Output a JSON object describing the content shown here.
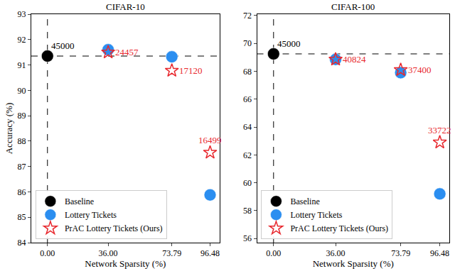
{
  "chart_data": [
    {
      "type": "scatter",
      "title": "CIFAR-10",
      "x_label": "Network Sparsity (%)",
      "y_label": "Accuracy (%)",
      "xlim": [
        -9.6,
        102.0
      ],
      "xticks": [
        {
          "value": 0,
          "label": "0.00"
        },
        {
          "value": 36,
          "label": "36.00"
        },
        {
          "value": 73.79,
          "label": "73.79"
        },
        {
          "value": 96.48,
          "label": "96.48"
        }
      ],
      "ylim": [
        84,
        93
      ],
      "yticks": [
        84,
        85,
        86,
        87,
        88,
        89,
        90,
        91,
        92,
        93
      ],
      "grid": false,
      "legend": "lower left",
      "series": [
        {
          "name": "Baseline",
          "color": "#000000",
          "marker": "circle",
          "line_style": "dashed",
          "x": [
            0
          ],
          "values": [
            91.35
          ],
          "labels": [
            "45000"
          ]
        },
        {
          "name": "Lottery Tickets",
          "color": "#2b8ef0",
          "marker": "circle",
          "x": [
            36,
            73.79,
            96.48
          ],
          "values": [
            91.6,
            91.32,
            85.88
          ]
        },
        {
          "name": "PrAC Lottery Tickets (Ours)",
          "color": "#e8282e",
          "marker": "star-open",
          "x": [
            36,
            73.79,
            96.48
          ],
          "values": [
            91.5,
            90.78,
            87.55
          ],
          "labels": [
            "24457",
            "17120",
            "16499"
          ]
        }
      ]
    },
    {
      "type": "scatter",
      "title": "CIFAR-100",
      "x_label": "Network Sparsity (%)",
      "xlim": [
        -9.6,
        102.0
      ],
      "xticks": [
        {
          "value": 0,
          "label": "0.00"
        },
        {
          "value": 36,
          "label": "36.00"
        },
        {
          "value": 73.79,
          "label": "73.79"
        },
        {
          "value": 96.48,
          "label": "96.48"
        }
      ],
      "ylim": [
        55.7,
        72.1
      ],
      "yticks": [
        56,
        58,
        60,
        62,
        64,
        66,
        68,
        70,
        72
      ],
      "grid": false,
      "legend": "lower left",
      "series": [
        {
          "name": "Baseline",
          "color": "#000000",
          "marker": "circle",
          "line_style": "dashed",
          "x": [
            0
          ],
          "values": [
            69.25
          ],
          "labels": [
            "45000"
          ]
        },
        {
          "name": "Lottery Tickets",
          "color": "#2b8ef0",
          "marker": "circle",
          "x": [
            36,
            73.79,
            96.48
          ],
          "values": [
            68.85,
            67.9,
            59.2
          ]
        },
        {
          "name": "PrAC Lottery Tickets (Ours)",
          "color": "#e8282e",
          "marker": "star-open",
          "x": [
            36,
            73.79,
            96.48
          ],
          "values": [
            68.85,
            68.1,
            62.9
          ],
          "labels": [
            "40824",
            "37400",
            "33722"
          ]
        }
      ]
    }
  ]
}
